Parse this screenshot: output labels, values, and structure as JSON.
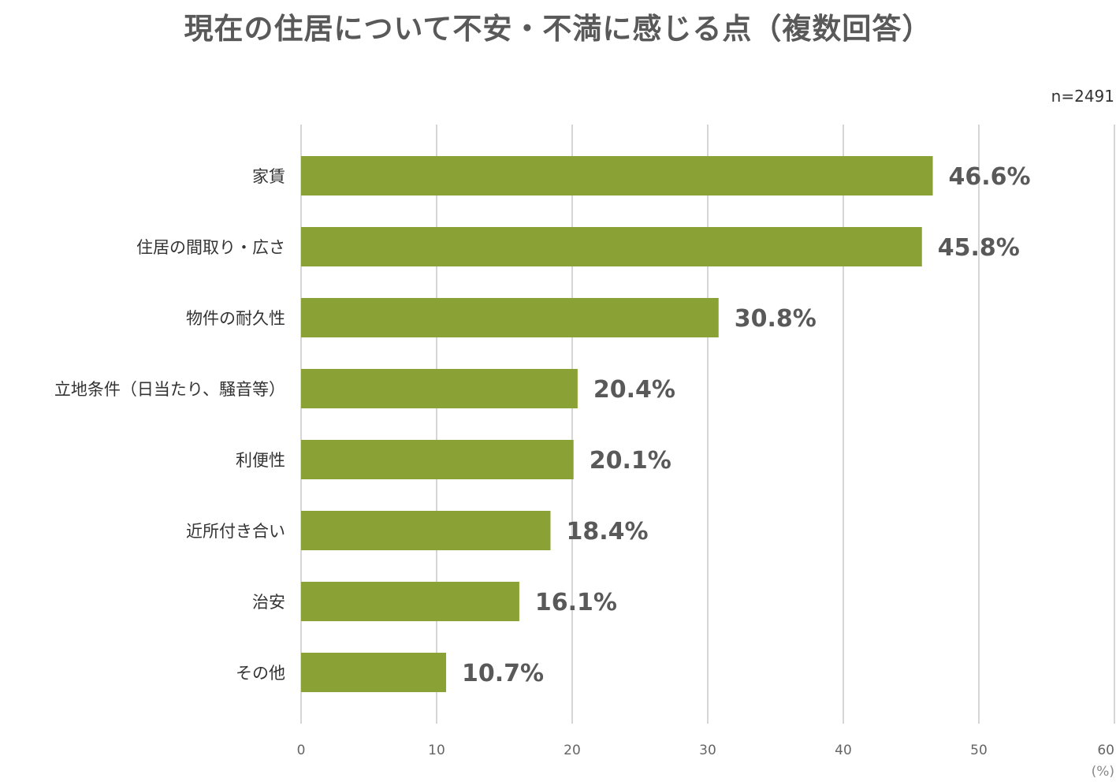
{
  "chart_data": {
    "type": "bar",
    "orientation": "horizontal",
    "title": "現在の住居について不安・不満に感じる点（複数回答）",
    "note": "n=2491",
    "categories": [
      "家賃",
      "住居の間取り・広さ",
      "物件の耐久性",
      "立地条件（日当たり、騒音等）",
      "利便性",
      "近所付き合い",
      "治安",
      "その他"
    ],
    "values": [
      46.6,
      45.8,
      30.8,
      20.4,
      20.1,
      18.4,
      16.1,
      10.7
    ],
    "value_labels": [
      "46.6%",
      "45.8%",
      "30.8%",
      "20.4%",
      "20.1%",
      "18.4%",
      "16.1%",
      "10.7%"
    ],
    "xlim": [
      0,
      60
    ],
    "x_ticks": [
      "0",
      "10",
      "20",
      "30",
      "40",
      "50",
      "60"
    ],
    "x_unit": "(%)",
    "grid": true,
    "colors": {
      "bar": "#8aa235",
      "grid": "#c8c8c8",
      "title": "#595959",
      "value_label": "#595959"
    }
  }
}
